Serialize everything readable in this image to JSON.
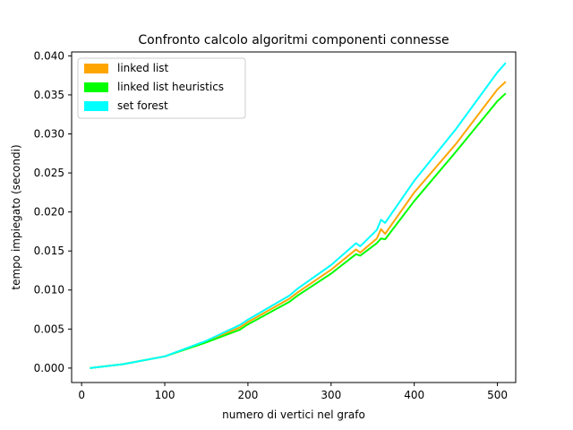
{
  "chart_data": {
    "type": "line",
    "title": "Confronto calcolo algoritmi componenti connesse",
    "xlabel": "numero di vertici nel grafo",
    "ylabel": "tempo impiegato (secondi)",
    "xlim": [
      -12,
      522
    ],
    "ylim": [
      -0.00185,
      0.0405
    ],
    "x_ticks": [
      0,
      100,
      200,
      300,
      400,
      500
    ],
    "x_tick_labels": [
      "0",
      "100",
      "200",
      "300",
      "400",
      "500"
    ],
    "y_ticks": [
      0,
      0.005,
      0.01,
      0.015,
      0.02,
      0.025,
      0.03,
      0.035,
      0.04
    ],
    "y_tick_labels": [
      "0.000",
      "0.005",
      "0.010",
      "0.015",
      "0.020",
      "0.025",
      "0.030",
      "0.035",
      "0.040"
    ],
    "grid": false,
    "legend_position": "top-left",
    "series": [
      {
        "name": "linked list",
        "color": "#ffa500",
        "x": [
          10,
          50,
          100,
          150,
          190,
          200,
          250,
          260,
          300,
          330,
          335,
          355,
          360,
          365,
          400,
          450,
          500,
          510
        ],
        "y": [
          0.0,
          0.0005,
          0.0015,
          0.0034,
          0.0052,
          0.0059,
          0.0089,
          0.0097,
          0.0126,
          0.0152,
          0.0148,
          0.0166,
          0.0178,
          0.0172,
          0.0225,
          0.0287,
          0.0357,
          0.0367
        ]
      },
      {
        "name": "linked list heuristics",
        "color": "#00ff00",
        "x": [
          10,
          50,
          100,
          150,
          190,
          200,
          250,
          260,
          300,
          330,
          335,
          355,
          360,
          365,
          400,
          450,
          500,
          510
        ],
        "y": [
          0.0,
          0.0005,
          0.0015,
          0.0033,
          0.0049,
          0.0056,
          0.0085,
          0.0093,
          0.0121,
          0.0146,
          0.0144,
          0.016,
          0.0166,
          0.0165,
          0.0214,
          0.0277,
          0.0342,
          0.0352
        ]
      },
      {
        "name": "set forest",
        "color": "#00ffff",
        "x": [
          10,
          50,
          100,
          150,
          190,
          200,
          250,
          260,
          300,
          330,
          335,
          355,
          360,
          365,
          400,
          450,
          500,
          510
        ],
        "y": [
          0.0,
          0.0005,
          0.0015,
          0.0035,
          0.0055,
          0.0062,
          0.0093,
          0.0102,
          0.0132,
          0.016,
          0.0156,
          0.0177,
          0.019,
          0.0186,
          0.024,
          0.0306,
          0.0379,
          0.0391
        ]
      }
    ]
  }
}
